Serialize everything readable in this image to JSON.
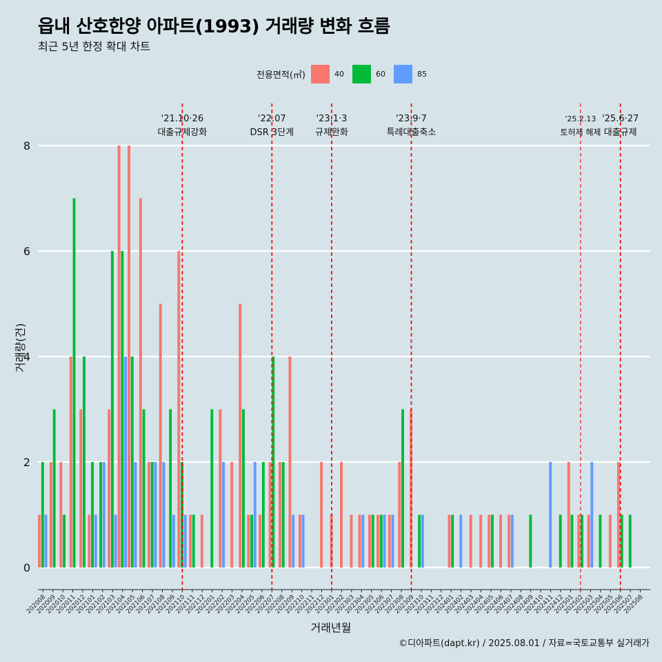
{
  "chart_data": {
    "type": "bar",
    "title": "읍내 산호한양 아파트(1993) 거래량 변화 흐름",
    "subtitle": "최근 5년 한정 확대 차트",
    "xlabel": "거래년월",
    "ylabel": "거래량(건)",
    "caption": "©디아파트(dapt.kr) / 2025.08.01 / 자료=국토교통부 실거래가",
    "legend_title": "전용면적(㎡)",
    "legend_position": "top",
    "ylim": [
      0,
      8.8
    ],
    "yticks": [
      0,
      2,
      4,
      6,
      8
    ],
    "grid": true,
    "categories": [
      "202008",
      "202009",
      "202010",
      "202011",
      "202012",
      "202101",
      "202102",
      "202103",
      "202104",
      "202105",
      "202106",
      "202107",
      "202108",
      "202109",
      "202110",
      "202111",
      "202112",
      "202201",
      "202202",
      "202203",
      "202204",
      "202205",
      "202206",
      "202207",
      "202208",
      "202209",
      "202210",
      "202211",
      "202212",
      "202301",
      "202302",
      "202303",
      "202304",
      "202305",
      "202306",
      "202307",
      "202308",
      "202309",
      "202310",
      "202311",
      "202312",
      "202401",
      "202402",
      "202403",
      "202404",
      "202405",
      "202406",
      "202407",
      "202408",
      "202409",
      "202410",
      "202411",
      "202412",
      "202501",
      "202502",
      "202503",
      "202504",
      "202505",
      "202506",
      "202507",
      "202508"
    ],
    "series": [
      {
        "name": "40",
        "color": "#f8766d",
        "values": [
          1,
          2,
          2,
          4,
          3,
          1,
          0,
          3,
          8,
          8,
          7,
          2,
          5,
          0,
          6,
          1,
          1,
          0,
          3,
          2,
          5,
          1,
          1,
          2,
          2,
          4,
          1,
          0,
          2,
          1,
          2,
          1,
          1,
          1,
          1,
          1,
          2,
          3,
          0,
          0,
          0,
          1,
          0,
          1,
          1,
          1,
          1,
          1,
          0,
          0,
          0,
          0,
          0,
          2,
          1,
          1,
          0,
          1,
          2,
          0,
          0
        ]
      },
      {
        "name": "60",
        "color": "#00ba38",
        "values": [
          2,
          3,
          1,
          7,
          4,
          2,
          2,
          6,
          6,
          4,
          3,
          2,
          0,
          3,
          2,
          1,
          0,
          3,
          0,
          0,
          3,
          1,
          2,
          4,
          2,
          0,
          0,
          0,
          0,
          0,
          0,
          0,
          0,
          1,
          1,
          0,
          3,
          0,
          1,
          0,
          0,
          1,
          0,
          0,
          0,
          1,
          0,
          0,
          0,
          1,
          0,
          0,
          1,
          1,
          1,
          0,
          1,
          0,
          1,
          1,
          0
        ]
      },
      {
        "name": "85",
        "color": "#619cff",
        "values": [
          1,
          0,
          0,
          0,
          0,
          1,
          2,
          1,
          4,
          2,
          0,
          2,
          2,
          1,
          1,
          0,
          0,
          0,
          2,
          0,
          0,
          2,
          0,
          0,
          0,
          1,
          1,
          0,
          0,
          0,
          0,
          0,
          1,
          0,
          1,
          1,
          0,
          0,
          1,
          0,
          0,
          0,
          1,
          0,
          0,
          0,
          0,
          1,
          0,
          0,
          0,
          2,
          0,
          0,
          0,
          2,
          0,
          0,
          0,
          0,
          0
        ]
      }
    ],
    "annotations": [
      {
        "x": "202110",
        "line1": "'21.10·26",
        "line2": "대출규제강화",
        "style": "bold"
      },
      {
        "x": "202207",
        "line1": "'22.07",
        "line2": "DSR 3단계",
        "style": "bold"
      },
      {
        "x": "202301",
        "line1": "'23.1·3",
        "line2": "규제완화",
        "style": "bold"
      },
      {
        "x": "202309",
        "line1": "'23.9·7",
        "line2": "특례대출축소",
        "style": "bold"
      },
      {
        "x": "202502",
        "line1": "'25.2.13",
        "line2": "토허제 해제",
        "style": "thin"
      },
      {
        "x": "202506",
        "line1": "'25.6·27",
        "line2": "대출규제",
        "style": "bold"
      }
    ]
  }
}
